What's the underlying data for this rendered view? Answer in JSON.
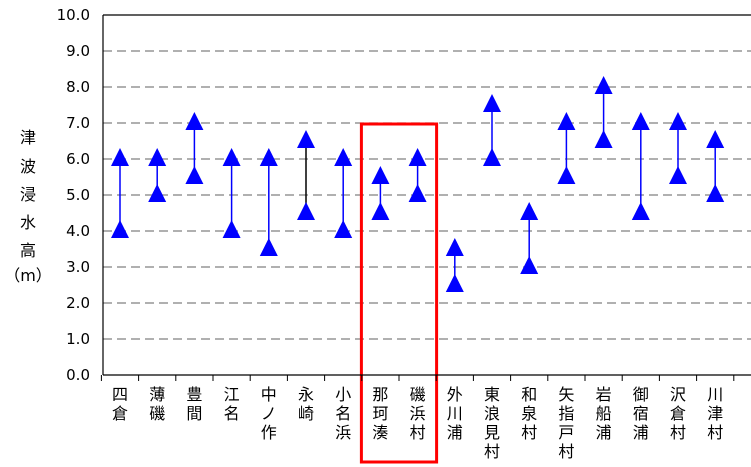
{
  "chart_data": {
    "type": "range",
    "ylabel": [
      "津",
      "波",
      "浸",
      "水",
      "高",
      "（m）"
    ],
    "ylim": [
      0,
      10
    ],
    "yticks": [
      "0.0",
      "1.0",
      "2.0",
      "3.0",
      "4.0",
      "5.0",
      "6.0",
      "7.0",
      "8.0",
      "9.0",
      "10.0"
    ],
    "grid": "dashed-horizontal",
    "series_color": "#0000ff",
    "highlight_color": "#ff0000",
    "categories": [
      {
        "name": "四倉",
        "low": 4.0,
        "high": 6.0
      },
      {
        "name": "薄磯",
        "low": 5.0,
        "high": 6.0
      },
      {
        "name": "豊間",
        "low": 5.5,
        "high": 7.0
      },
      {
        "name": "江名",
        "low": 4.0,
        "high": 6.0
      },
      {
        "name": "中ノ作",
        "low": 3.5,
        "high": 6.0
      },
      {
        "name": "永崎",
        "low": 4.5,
        "high": 6.5
      },
      {
        "name": "小名浜",
        "low": 4.0,
        "high": 6.0
      },
      {
        "name": "那珂湊",
        "low": 4.5,
        "high": 5.5
      },
      {
        "name": "磯浜村",
        "low": 5.0,
        "high": 6.0
      },
      {
        "name": "外川浦",
        "low": 2.5,
        "high": 3.5
      },
      {
        "name": "東浪見村",
        "low": 6.0,
        "high": 7.5
      },
      {
        "name": "和泉村",
        "low": 3.0,
        "high": 4.5
      },
      {
        "name": "矢指戸村",
        "low": 5.5,
        "high": 7.0
      },
      {
        "name": "岩船浦",
        "low": 6.5,
        "high": 8.0
      },
      {
        "name": "御宿浦",
        "low": 4.5,
        "high": 7.0
      },
      {
        "name": "沢倉村",
        "low": 5.5,
        "high": 7.0
      },
      {
        "name": "川津村",
        "low": 5.0,
        "high": 6.5
      }
    ],
    "highlighted_categories": [
      "那珂湊",
      "磯浜村"
    ]
  }
}
